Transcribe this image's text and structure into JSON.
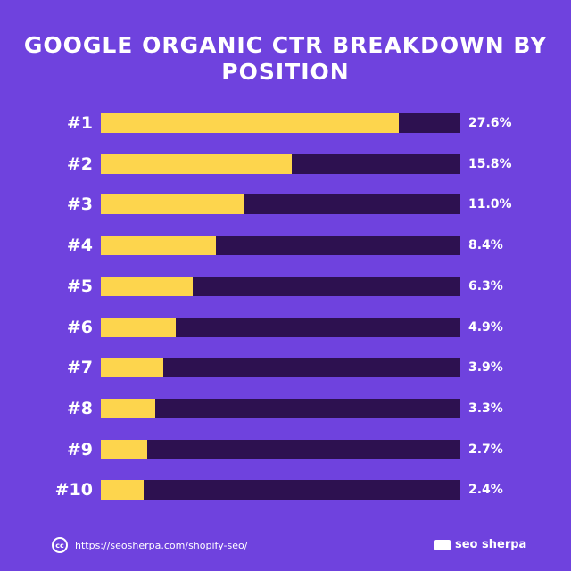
{
  "chart_data": {
    "type": "bar",
    "orientation": "horizontal",
    "title": "GOOGLE ORGANIC CTR BREAKDOWN BY POSITION",
    "categories": [
      "#1",
      "#2",
      "#3",
      "#4",
      "#5",
      "#6",
      "#7",
      "#8",
      "#9",
      "#10"
    ],
    "values": [
      27.6,
      15.8,
      11.0,
      8.4,
      6.3,
      4.9,
      3.9,
      3.3,
      2.7,
      2.4
    ],
    "value_labels": [
      "27.6%",
      "15.8%",
      "11.0%",
      "8.4%",
      "6.3%",
      "4.9%",
      "3.9%",
      "3.3%",
      "2.7%",
      "2.4%"
    ],
    "unit": "%",
    "grid": false,
    "colors": {
      "background": "#6f42de",
      "bar_fill": "#fdd54d",
      "bar_track": "#2d1150",
      "text": "#ffffff"
    }
  },
  "footer": {
    "license_icon": "creative-commons-icon",
    "license_text": "cc",
    "url": "https://seosherpa.com/shopify-seo/",
    "brand": "seo sherpa"
  }
}
